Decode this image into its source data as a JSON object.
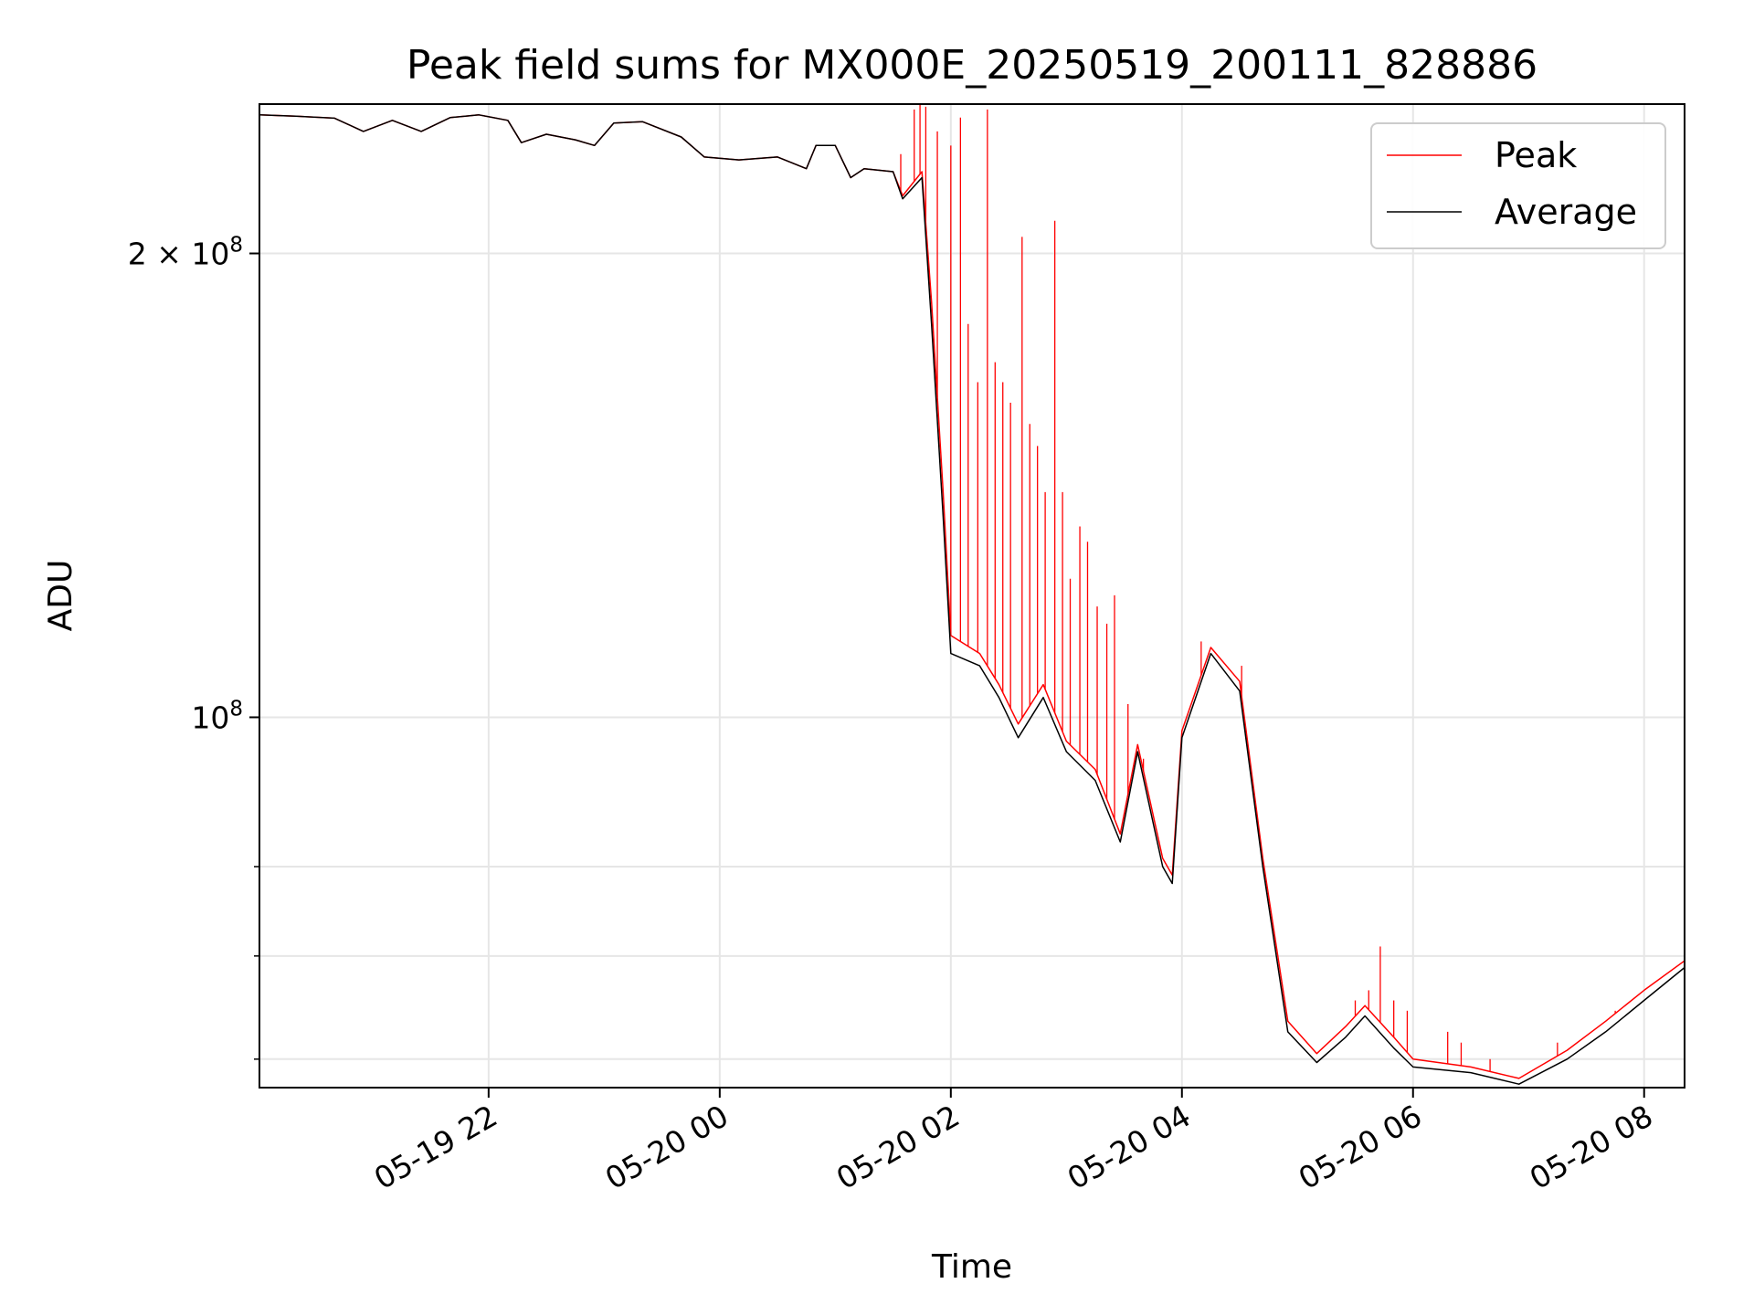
{
  "chart_data": {
    "type": "line",
    "title": "Peak field sums for MX000E_20250519_200111_828886",
    "xlabel": "Time",
    "ylabel": "ADU",
    "y_scale": "log",
    "xlim": [
      "2025-05-19 20:01",
      "2025-05-20 08:21"
    ],
    "ylim": [
      57500000,
      250000000
    ],
    "grid": true,
    "legend": {
      "position": "top-right"
    },
    "x_ticks": [
      "05-19 22",
      "05-20 00",
      "05-20 02",
      "05-20 04",
      "05-20 06",
      "05-20 08"
    ],
    "x_tick_values": [
      "2025-05-19 22:00",
      "2025-05-20 00:00",
      "2025-05-20 02:00",
      "2025-05-20 04:00",
      "2025-05-20 06:00",
      "2025-05-20 08:00"
    ],
    "y_ticks": [
      {
        "value": 100000000,
        "base": "10",
        "exp": "8",
        "mult": ""
      },
      {
        "value": 200000000,
        "base": "10",
        "exp": "8",
        "mult": "2 × "
      }
    ],
    "y_minor_ticks": [
      60000000,
      70000000,
      80000000
    ],
    "series": [
      {
        "name": "Average",
        "color": "#000000",
        "points": [
          [
            "2025-05-19 20:01",
            246000000
          ],
          [
            "2025-05-19 20:20",
            245500000
          ],
          [
            "2025-05-19 20:40",
            244800000
          ],
          [
            "2025-05-19 20:55",
            240000000
          ],
          [
            "2025-05-19 21:10",
            244000000
          ],
          [
            "2025-05-19 21:25",
            240000000
          ],
          [
            "2025-05-19 21:40",
            245000000
          ],
          [
            "2025-05-19 21:55",
            246000000
          ],
          [
            "2025-05-19 22:10",
            244000000
          ],
          [
            "2025-05-19 22:17",
            236000000
          ],
          [
            "2025-05-19 22:30",
            239000000
          ],
          [
            "2025-05-19 22:45",
            237000000
          ],
          [
            "2025-05-19 22:55",
            235000000
          ],
          [
            "2025-05-19 23:05",
            243000000
          ],
          [
            "2025-05-19 23:20",
            243500000
          ],
          [
            "2025-05-19 23:40",
            238000000
          ],
          [
            "2025-05-19 23:52",
            231000000
          ],
          [
            "2025-05-20 00:10",
            230000000
          ],
          [
            "2025-05-20 00:30",
            231000000
          ],
          [
            "2025-05-20 00:45",
            227000000
          ],
          [
            "2025-05-20 00:50",
            235000000
          ],
          [
            "2025-05-20 01:00",
            235000000
          ],
          [
            "2025-05-20 01:08",
            224000000
          ],
          [
            "2025-05-20 01:15",
            227000000
          ],
          [
            "2025-05-20 01:30",
            226000000
          ],
          [
            "2025-05-20 01:35",
            217000000
          ],
          [
            "2025-05-20 01:45",
            224000000
          ],
          [
            "2025-05-20 01:50",
            180000000
          ],
          [
            "2025-05-20 01:56",
            135000000
          ],
          [
            "2025-05-20 02:00",
            110000000
          ],
          [
            "2025-05-20 02:15",
            108000000
          ],
          [
            "2025-05-20 02:25",
            103000000
          ],
          [
            "2025-05-20 02:35",
            97000000
          ],
          [
            "2025-05-20 02:48",
            103000000
          ],
          [
            "2025-05-20 03:00",
            95000000
          ],
          [
            "2025-05-20 03:15",
            91000000
          ],
          [
            "2025-05-20 03:28",
            83000000
          ],
          [
            "2025-05-20 03:37",
            95000000
          ],
          [
            "2025-05-20 03:50",
            80000000
          ],
          [
            "2025-05-20 03:55",
            78000000
          ],
          [
            "2025-05-20 04:00",
            97000000
          ],
          [
            "2025-05-20 04:15",
            110000000
          ],
          [
            "2025-05-20 04:30",
            104000000
          ],
          [
            "2025-05-20 04:42",
            80000000
          ],
          [
            "2025-05-20 04:55",
            62500000
          ],
          [
            "2025-05-20 05:10",
            59700000
          ],
          [
            "2025-05-20 05:25",
            62000000
          ],
          [
            "2025-05-20 05:35",
            64000000
          ],
          [
            "2025-05-20 05:50",
            61000000
          ],
          [
            "2025-05-20 06:00",
            59300000
          ],
          [
            "2025-05-20 06:30",
            58800000
          ],
          [
            "2025-05-20 06:55",
            57800000
          ],
          [
            "2025-05-20 07:20",
            60000000
          ],
          [
            "2025-05-20 07:40",
            62500000
          ],
          [
            "2025-05-20 08:00",
            65500000
          ],
          [
            "2025-05-20 08:21",
            68800000
          ]
        ]
      },
      {
        "name": "Peak",
        "color": "#ff0000",
        "points": [
          [
            "2025-05-19 20:01",
            246000000
          ],
          [
            "2025-05-19 20:20",
            245500000
          ],
          [
            "2025-05-19 20:40",
            244800000
          ],
          [
            "2025-05-19 20:55",
            240000000
          ],
          [
            "2025-05-19 21:10",
            244000000
          ],
          [
            "2025-05-19 21:25",
            240000000
          ],
          [
            "2025-05-19 21:40",
            245000000
          ],
          [
            "2025-05-19 21:55",
            246000000
          ],
          [
            "2025-05-19 22:10",
            244000000
          ],
          [
            "2025-05-19 22:17",
            236000000
          ],
          [
            "2025-05-19 22:30",
            239000000
          ],
          [
            "2025-05-19 22:45",
            237000000
          ],
          [
            "2025-05-19 22:55",
            235000000
          ],
          [
            "2025-05-19 23:05",
            243000000
          ],
          [
            "2025-05-19 23:20",
            243500000
          ],
          [
            "2025-05-19 23:40",
            238000000
          ],
          [
            "2025-05-19 23:52",
            231000000
          ],
          [
            "2025-05-20 00:10",
            230000000
          ],
          [
            "2025-05-20 00:30",
            231000000
          ],
          [
            "2025-05-20 00:45",
            227000000
          ],
          [
            "2025-05-20 00:50",
            235000000
          ],
          [
            "2025-05-20 01:00",
            235000000
          ],
          [
            "2025-05-20 01:08",
            224000000
          ],
          [
            "2025-05-20 01:15",
            227000000
          ],
          [
            "2025-05-20 01:30",
            226000000
          ],
          [
            "2025-05-20 01:35",
            218000000
          ],
          [
            "2025-05-20 01:45",
            226000000
          ],
          [
            "2025-05-20 01:50",
            186000000
          ],
          [
            "2025-05-20 01:56",
            140000000
          ],
          [
            "2025-05-20 02:00",
            113000000
          ],
          [
            "2025-05-20 02:15",
            110000000
          ],
          [
            "2025-05-20 02:25",
            105000000
          ],
          [
            "2025-05-20 02:35",
            99000000
          ],
          [
            "2025-05-20 02:48",
            105000000
          ],
          [
            "2025-05-20 03:00",
            96500000
          ],
          [
            "2025-05-20 03:15",
            92500000
          ],
          [
            "2025-05-20 03:28",
            84000000
          ],
          [
            "2025-05-20 03:37",
            96000000
          ],
          [
            "2025-05-20 03:50",
            81000000
          ],
          [
            "2025-05-20 03:55",
            79000000
          ],
          [
            "2025-05-20 04:00",
            98000000
          ],
          [
            "2025-05-20 04:15",
            111000000
          ],
          [
            "2025-05-20 04:30",
            105500000
          ],
          [
            "2025-05-20 04:42",
            81000000
          ],
          [
            "2025-05-20 04:55",
            63500000
          ],
          [
            "2025-05-20 05:10",
            60500000
          ],
          [
            "2025-05-20 05:25",
            63000000
          ],
          [
            "2025-05-20 05:35",
            65000000
          ],
          [
            "2025-05-20 05:50",
            62000000
          ],
          [
            "2025-05-20 06:00",
            60000000
          ],
          [
            "2025-05-20 06:30",
            59300000
          ],
          [
            "2025-05-20 06:55",
            58300000
          ],
          [
            "2025-05-20 07:20",
            60800000
          ],
          [
            "2025-05-20 07:40",
            63500000
          ],
          [
            "2025-05-20 08:00",
            66500000
          ],
          [
            "2025-05-20 08:21",
            69500000
          ]
        ],
        "spikes": [
          [
            "2025-05-20 01:34",
            232000000
          ],
          [
            "2025-05-20 01:41",
            248000000
          ],
          [
            "2025-05-20 01:44",
            250000000
          ],
          [
            "2025-05-20 01:47",
            249000000
          ],
          [
            "2025-05-20 01:53",
            240000000
          ],
          [
            "2025-05-20 02:00",
            235000000
          ],
          [
            "2025-05-20 02:05",
            245000000
          ],
          [
            "2025-05-20 02:09",
            180000000
          ],
          [
            "2025-05-20 02:14",
            165000000
          ],
          [
            "2025-05-20 02:19",
            248000000
          ],
          [
            "2025-05-20 02:23",
            170000000
          ],
          [
            "2025-05-20 02:27",
            165000000
          ],
          [
            "2025-05-20 02:31",
            160000000
          ],
          [
            "2025-05-20 02:37",
            205000000
          ],
          [
            "2025-05-20 02:41",
            155000000
          ],
          [
            "2025-05-20 02:45",
            150000000
          ],
          [
            "2025-05-20 02:49",
            140000000
          ],
          [
            "2025-05-20 02:54",
            210000000
          ],
          [
            "2025-05-20 02:58",
            140000000
          ],
          [
            "2025-05-20 03:02",
            123000000
          ],
          [
            "2025-05-20 03:07",
            133000000
          ],
          [
            "2025-05-20 03:11",
            130000000
          ],
          [
            "2025-05-20 03:16",
            118000000
          ],
          [
            "2025-05-20 03:21",
            115000000
          ],
          [
            "2025-05-20 03:25",
            120000000
          ],
          [
            "2025-05-20 03:32",
            102000000
          ],
          [
            "2025-05-20 03:40",
            94000000
          ],
          [
            "2025-05-20 04:10",
            112000000
          ],
          [
            "2025-05-20 04:31",
            108000000
          ],
          [
            "2025-05-20 05:30",
            65500000
          ],
          [
            "2025-05-20 05:37",
            66500000
          ],
          [
            "2025-05-20 05:43",
            71000000
          ],
          [
            "2025-05-20 05:50",
            65500000
          ],
          [
            "2025-05-20 05:57",
            64500000
          ],
          [
            "2025-05-20 06:18",
            62500000
          ],
          [
            "2025-05-20 06:25",
            61500000
          ],
          [
            "2025-05-20 06:40",
            60000000
          ],
          [
            "2025-05-20 07:15",
            61500000
          ],
          [
            "2025-05-20 07:45",
            64500000
          ]
        ]
      }
    ],
    "legend_entries": [
      "Peak",
      "Average"
    ]
  }
}
